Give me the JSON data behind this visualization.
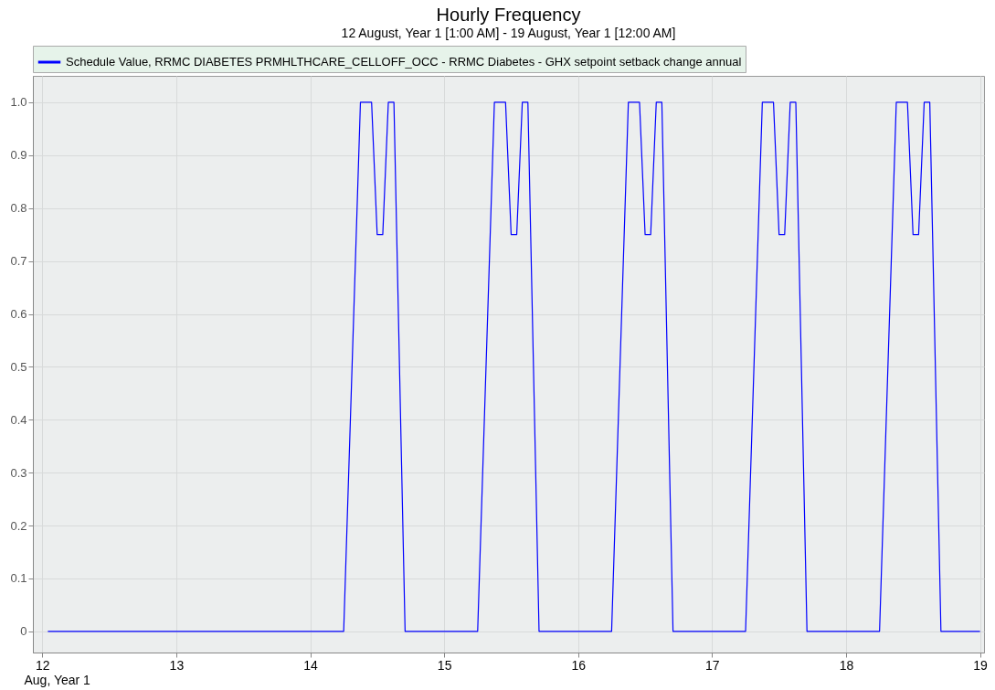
{
  "chart_data": {
    "type": "line",
    "title": "Hourly Frequency",
    "subtitle": "12 August, Year 1 [1:00 AM] - 19 August, Year 1 [12:00 AM]",
    "xlabel": "Aug, Year 1",
    "x": [
      12.0417,
      14.25,
      14.375,
      14.4583,
      14.5,
      14.5417,
      14.5833,
      14.625,
      14.7083,
      15.25,
      15.375,
      15.4583,
      15.5,
      15.5417,
      15.5833,
      15.625,
      15.7083,
      16.25,
      16.375,
      16.4583,
      16.5,
      16.5417,
      16.5833,
      16.625,
      16.7083,
      17.25,
      17.375,
      17.4583,
      17.5,
      17.5417,
      17.5833,
      17.625,
      17.7083,
      18.25,
      18.375,
      18.4583,
      18.5,
      18.5417,
      18.5833,
      18.625,
      18.7083,
      19.0
    ],
    "series": [
      {
        "name": "Schedule Value, RRMC DIABETES PRMHLTHCARE_CELLOFF_OCC - RRMC Diabetes - GHX setpoint setback change annual",
        "color": "#0000ff",
        "values": [
          0,
          0,
          1,
          1,
          0.75,
          0.75,
          1,
          1,
          0,
          0,
          1,
          1,
          0.75,
          0.75,
          1,
          1,
          0,
          0,
          1,
          1,
          0.75,
          0.75,
          1,
          1,
          0,
          0,
          1,
          1,
          0.75,
          0.75,
          1,
          1,
          0,
          0,
          1,
          1,
          0.75,
          0.75,
          1,
          1,
          0,
          0
        ]
      }
    ],
    "xlim": [
      11.93,
      19.03
    ],
    "xticks": [
      12,
      13,
      14,
      15,
      16,
      17,
      18,
      19
    ],
    "ylim": [
      -0.04,
      1.05
    ],
    "yticks": [
      0,
      0.1,
      0.2,
      0.3,
      0.4,
      0.5,
      0.6,
      0.7,
      0.8,
      0.9,
      {
        "value": 1,
        "label": "1.0"
      }
    ],
    "grid": true,
    "legend": "top",
    "marker": "none",
    "line_style": "solid"
  }
}
